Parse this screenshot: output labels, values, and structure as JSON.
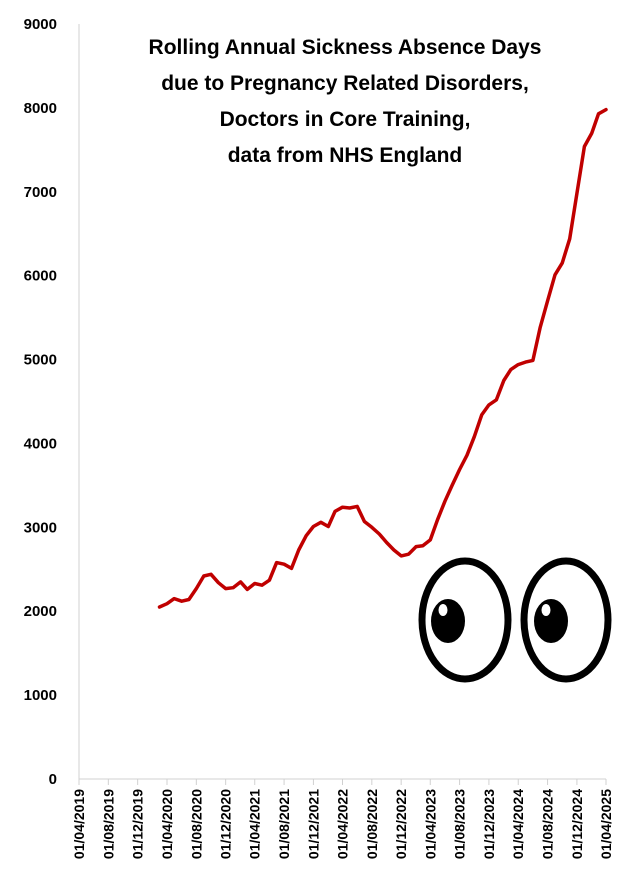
{
  "chart_data": {
    "type": "line",
    "title": "Rolling Annual Sickness Absence Days due to Pregnancy Related Disorders, Doctors in Core Training, data from NHS England",
    "title_lines": [
      "Rolling Annual Sickness Absence Days",
      "due to Pregnancy Related Disorders,",
      "Doctors in Core Training,",
      "data from NHS England"
    ],
    "xlabel": "",
    "ylabel": "",
    "ylim": [
      0,
      9000
    ],
    "y_ticks": [
      "0",
      "1000",
      "2000",
      "3000",
      "4000",
      "5000",
      "6000",
      "7000",
      "8000",
      "9000"
    ],
    "x_ticks": [
      "01/04/2019",
      "01/08/2019",
      "01/12/2019",
      "01/04/2020",
      "01/08/2020",
      "01/12/2020",
      "01/04/2021",
      "01/08/2021",
      "01/12/2021",
      "01/04/2022",
      "01/08/2022",
      "01/12/2022",
      "01/04/2023",
      "01/08/2023",
      "01/12/2023",
      "01/04/2024",
      "01/08/2024",
      "01/12/2024",
      "01/04/2025"
    ],
    "grid": false,
    "legend": "none",
    "line_color": "#C00000",
    "series": [
      {
        "x": [
          "2020-03-01",
          "2020-04-01",
          "2020-05-01",
          "2020-06-01",
          "2020-07-01",
          "2020-08-01",
          "2020-09-01",
          "2020-10-01",
          "2020-11-01",
          "2020-12-01",
          "2021-01-01",
          "2021-02-01",
          "2021-03-01",
          "2021-04-01",
          "2021-05-01",
          "2021-06-01",
          "2021-07-01",
          "2021-08-01",
          "2021-09-01",
          "2021-10-01",
          "2021-11-01",
          "2021-12-01",
          "2022-01-01",
          "2022-02-01",
          "2022-03-01",
          "2022-04-01",
          "2022-05-01",
          "2022-06-01",
          "2022-07-01",
          "2022-08-01",
          "2022-09-01",
          "2022-10-01",
          "2022-11-01",
          "2022-12-01",
          "2023-01-01",
          "2023-02-01",
          "2023-03-01",
          "2023-04-01",
          "2023-05-01",
          "2023-06-01",
          "2023-07-01",
          "2023-08-01",
          "2023-09-01",
          "2023-10-01",
          "2023-11-01",
          "2023-12-01",
          "2024-01-01",
          "2024-02-01",
          "2024-03-01",
          "2024-04-01",
          "2024-05-01",
          "2024-06-01",
          "2024-07-01",
          "2024-08-01",
          "2024-09-01",
          "2024-10-01",
          "2024-11-01",
          "2024-12-01",
          "2025-01-01",
          "2025-02-01",
          "2025-03-01",
          "2025-04-01"
        ],
        "values": [
          2050,
          2090,
          2150,
          2120,
          2140,
          2270,
          2420,
          2440,
          2340,
          2270,
          2280,
          2350,
          2260,
          2330,
          2310,
          2370,
          2580,
          2560,
          2510,
          2730,
          2900,
          3010,
          3060,
          3010,
          3190,
          3240,
          3230,
          3250,
          3070,
          3000,
          2920,
          2820,
          2730,
          2660,
          2680,
          2770,
          2780,
          2850,
          3090,
          3310,
          3500,
          3690,
          3860,
          4080,
          4340,
          4460,
          4520,
          4750,
          4880,
          4940,
          4970,
          4990,
          5380,
          5700,
          6010,
          6150,
          6440,
          6980,
          7540,
          7700,
          7930,
          7980
        ]
      }
    ],
    "annotation_icon": "cartoon-eyes-icon"
  }
}
